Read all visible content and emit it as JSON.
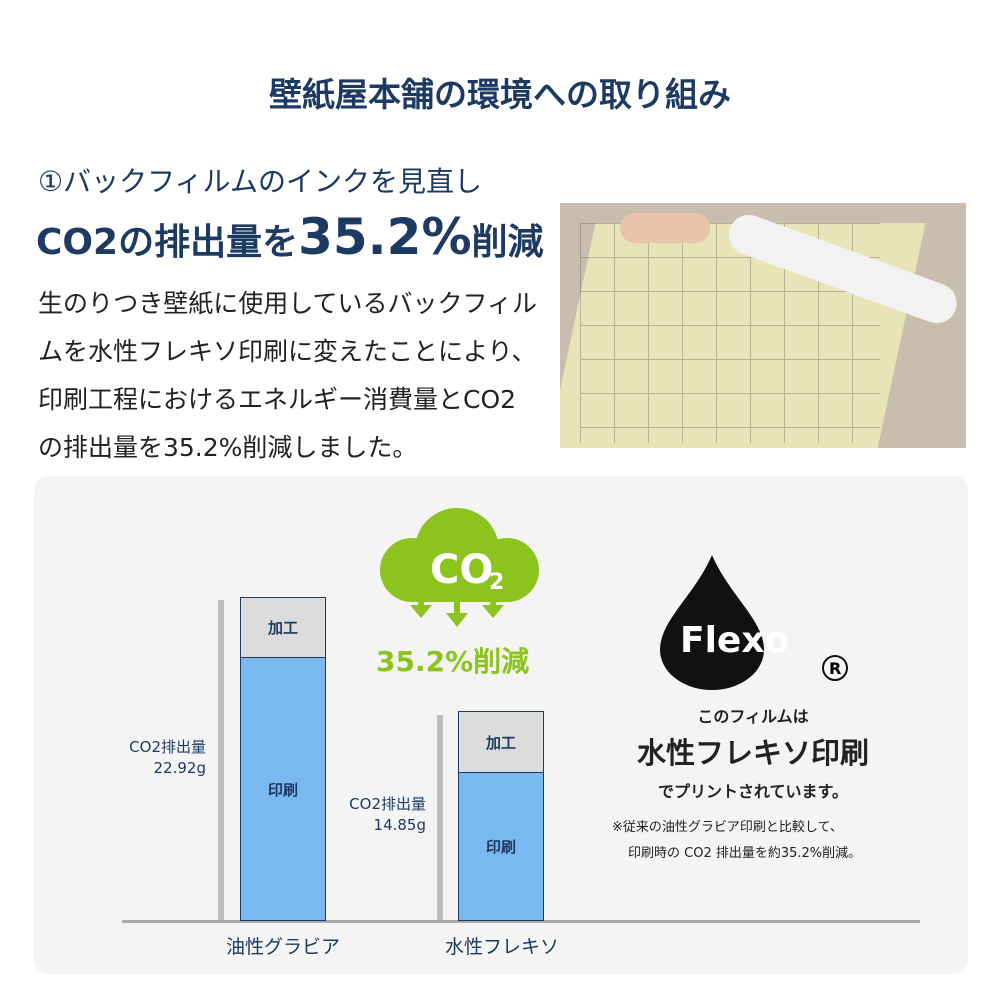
{
  "title": "壁紙屋本舗の環境への取り組み",
  "subtitle": "①バックフィルムのインクを見直し",
  "headline": {
    "pre": "CO2の排出量を",
    "big": "35.2%",
    "post": "削減"
  },
  "body": "生のりつき壁紙に使用しているバックフィルムを水性フレキソ印刷に変えたことにより、印刷工程におけるエネルギー消費量とCO2の排出量を35.2%削減しました。",
  "cloud": {
    "label": "CO",
    "sub": "2",
    "reduction": "35.2%削減",
    "color": "#8cc31e"
  },
  "chart": {
    "bars": [
      {
        "category": "油性グラビア",
        "label_line1": "CO2排出量",
        "label_line2": "22.92g",
        "value": 22.92,
        "top": "加工",
        "bottom": "印刷"
      },
      {
        "category": "水性フレキソ",
        "label_line1": "CO2排出量",
        "label_line2": "14.85g",
        "value": 14.85,
        "top": "加工",
        "bottom": "印刷"
      }
    ]
  },
  "flexo": {
    "logo": "Flexo",
    "registered": "®",
    "line1": "このフィルムは",
    "line2": "水性フレキソ印刷",
    "line3": "でプリントされています。",
    "note1": "※従来の油性グラビア印刷と比較して、",
    "note2": "印刷時の CO2 排出量を約35.2%削減。"
  }
}
